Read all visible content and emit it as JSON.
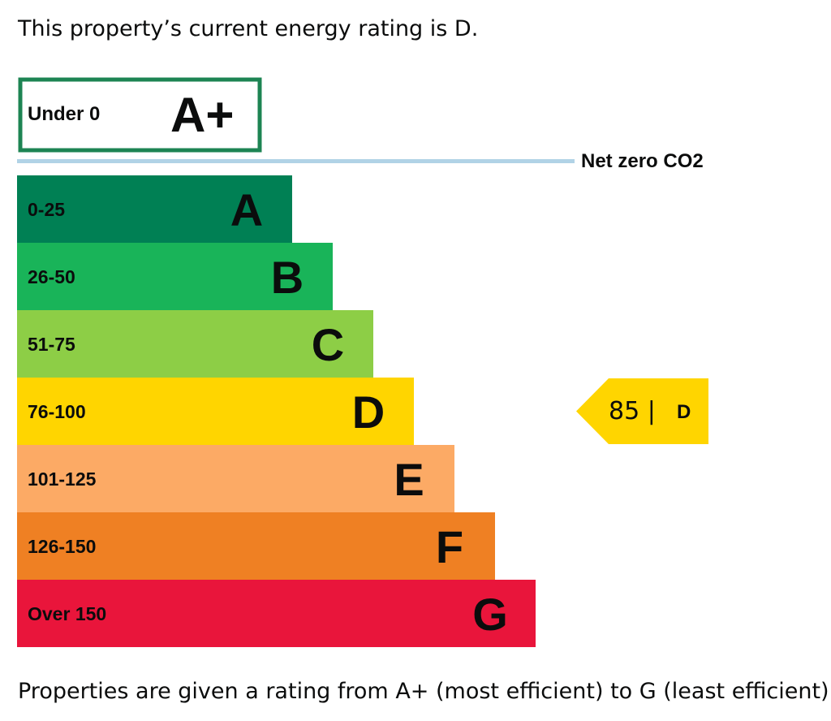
{
  "intro_text": "This property’s current energy rating is D.",
  "footer_text": "Properties are given a rating from A+ (most efficient) to G (least efficient).",
  "chart_data": {
    "type": "energy-rating-bar",
    "title": "This property’s current energy rating is D.",
    "top_band": {
      "range": "Under 0",
      "letter": "A+",
      "color": "#1d8453"
    },
    "net_zero_label": "Net zero CO2",
    "net_zero_line_color": "#b1d3e6",
    "bands": [
      {
        "range": "0-25",
        "letter": "A",
        "color": "#008054"
      },
      {
        "range": "26-50",
        "letter": "B",
        "color": "#19b459"
      },
      {
        "range": "51-75",
        "letter": "C",
        "color": "#8dce46"
      },
      {
        "range": "76-100",
        "letter": "D",
        "color": "#ffd500"
      },
      {
        "range": "101-125",
        "letter": "E",
        "color": "#fcaa65"
      },
      {
        "range": "126-150",
        "letter": "F",
        "color": "#ef8023"
      },
      {
        "range": "Over 150",
        "letter": "G",
        "color": "#e9153b"
      }
    ],
    "current": {
      "score": 85,
      "score_label": "85 |",
      "letter": "D",
      "band_index": 3,
      "color": "#ffd500"
    }
  }
}
